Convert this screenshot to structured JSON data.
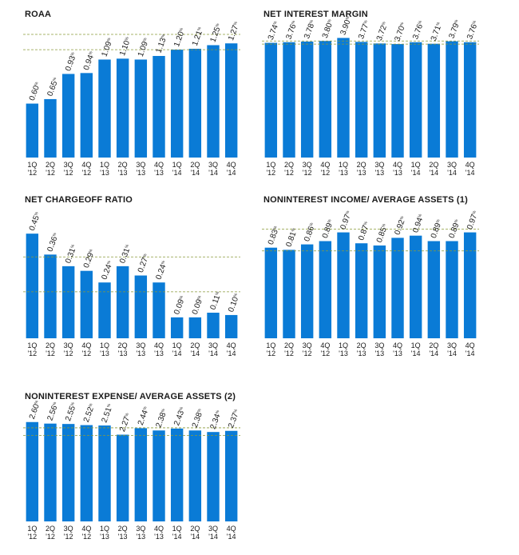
{
  "chart_data": [
    {
      "type": "bar",
      "title": "ROAA",
      "categories": [
        [
          "1Q",
          "'12"
        ],
        [
          "2Q",
          "'12"
        ],
        [
          "3Q",
          "'12"
        ],
        [
          "4Q",
          "'12"
        ],
        [
          "1Q",
          "'13"
        ],
        [
          "2Q",
          "'13"
        ],
        [
          "3Q",
          "'13"
        ],
        [
          "4Q",
          "'13"
        ],
        [
          "1Q",
          "'14"
        ],
        [
          "2Q",
          "'14"
        ],
        [
          "3Q",
          "'14"
        ],
        [
          "4Q",
          "'14"
        ]
      ],
      "values": [
        0.6,
        0.65,
        0.93,
        0.94,
        1.09,
        1.1,
        1.09,
        1.13,
        1.2,
        1.21,
        1.25,
        1.27
      ],
      "labels": [
        "0.60",
        "0.65",
        "0.93",
        "0.94",
        "1.09",
        "1.10",
        "1.09",
        "1.13",
        "1.20",
        "1.21",
        "1.25",
        "1.27"
      ],
      "unit": "%",
      "ylim": [
        0,
        1.45
      ],
      "reference_lines": [
        1.2,
        1.37
      ],
      "bar_color": "#0a7bd6",
      "reference_line_color": "#8a9a3a"
    },
    {
      "type": "bar",
      "title": "NET INTEREST MARGIN",
      "categories": [
        [
          "1Q",
          "'12"
        ],
        [
          "2Q",
          "'12"
        ],
        [
          "3Q",
          "'12"
        ],
        [
          "4Q",
          "'12"
        ],
        [
          "1Q",
          "'13"
        ],
        [
          "2Q",
          "'13"
        ],
        [
          "3Q",
          "'13"
        ],
        [
          "4Q",
          "'13"
        ],
        [
          "1Q",
          "'14"
        ],
        [
          "2Q",
          "'14"
        ],
        [
          "3Q",
          "'14"
        ],
        [
          "4Q",
          "'14"
        ]
      ],
      "values": [
        3.74,
        3.76,
        3.78,
        3.8,
        3.9,
        3.77,
        3.72,
        3.7,
        3.76,
        3.71,
        3.79,
        3.76
      ],
      "labels": [
        "3.74",
        "3.76",
        "3.78",
        "3.80",
        "3.90",
        "3.77",
        "3.72",
        "3.70",
        "3.76",
        "3.71",
        "3.79",
        "3.76"
      ],
      "unit": "%",
      "ylim": [
        0,
        4.25
      ],
      "reference_lines": [
        3.7,
        3.8
      ],
      "bar_color": "#0a7bd6",
      "reference_line_color": "#8a9a3a"
    },
    {
      "type": "bar",
      "title": "NET CHARGEOFF RATIO",
      "categories": [
        [
          "1Q",
          "'12"
        ],
        [
          "2Q",
          "'12"
        ],
        [
          "3Q",
          "'12"
        ],
        [
          "4Q",
          "'12"
        ],
        [
          "1Q",
          "'13"
        ],
        [
          "2Q",
          "'13"
        ],
        [
          "3Q",
          "'13"
        ],
        [
          "4Q",
          "'13"
        ],
        [
          "1Q",
          "'14"
        ],
        [
          "2Q",
          "'14"
        ],
        [
          "3Q",
          "'14"
        ],
        [
          "4Q",
          "'14"
        ]
      ],
      "values": [
        0.45,
        0.36,
        0.31,
        0.29,
        0.24,
        0.31,
        0.27,
        0.24,
        0.09,
        0.09,
        0.11,
        0.1
      ],
      "labels": [
        "0.45",
        "0.36",
        "0.31",
        "0.29",
        "0.24",
        "0.31",
        "0.27",
        "0.24",
        "0.09",
        "0.09",
        "0.11",
        "0.10"
      ],
      "unit": "%",
      "ylim": [
        0,
        0.54
      ],
      "reference_lines": [
        0.2,
        0.35
      ],
      "bar_color": "#0a7bd6",
      "reference_line_color": "#8a9a3a"
    },
    {
      "type": "bar",
      "title": "NONINTEREST INCOME/ AVERAGE ASSETS (1)",
      "categories": [
        [
          "1Q",
          "'12"
        ],
        [
          "2Q",
          "'12"
        ],
        [
          "3Q",
          "'12"
        ],
        [
          "4Q",
          "'12"
        ],
        [
          "1Q",
          "'13"
        ],
        [
          "2Q",
          "'13"
        ],
        [
          "3Q",
          "'13"
        ],
        [
          "4Q",
          "'13"
        ],
        [
          "1Q",
          "'14"
        ],
        [
          "2Q",
          "'14"
        ],
        [
          "3Q",
          "'14"
        ],
        [
          "4Q",
          "'14"
        ]
      ],
      "values": [
        0.83,
        0.81,
        0.86,
        0.89,
        0.97,
        0.87,
        0.85,
        0.92,
        0.94,
        0.89,
        0.89,
        0.97
      ],
      "labels": [
        "0.83",
        "0.81",
        "0.86",
        "0.89",
        "0.97",
        "0.87",
        "0.85",
        "0.92",
        "0.94",
        "0.89",
        "0.89",
        "0.97"
      ],
      "unit": "%",
      "ylim": [
        0,
        1.15
      ],
      "reference_lines": [
        0.8,
        1.0
      ],
      "bar_color": "#0a7bd6",
      "reference_line_color": "#8a9a3a"
    },
    {
      "type": "bar",
      "title": "NONINTEREST EXPENSE/ AVERAGE ASSETS (2)",
      "categories": [
        [
          "1Q",
          "'12"
        ],
        [
          "2Q",
          "'12"
        ],
        [
          "3Q",
          "'12"
        ],
        [
          "4Q",
          "'12"
        ],
        [
          "1Q",
          "'13"
        ],
        [
          "2Q",
          "'13"
        ],
        [
          "3Q",
          "'13"
        ],
        [
          "4Q",
          "'13"
        ],
        [
          "1Q",
          "'14"
        ],
        [
          "2Q",
          "'14"
        ],
        [
          "3Q",
          "'14"
        ],
        [
          "4Q",
          "'14"
        ]
      ],
      "values": [
        2.6,
        2.56,
        2.55,
        2.52,
        2.51,
        2.27,
        2.44,
        2.38,
        2.43,
        2.38,
        2.34,
        2.37
      ],
      "labels": [
        "2.60",
        "2.56",
        "2.55",
        "2.52",
        "2.51",
        "2.27",
        "2.44",
        "2.38",
        "2.43",
        "2.38",
        "2.34",
        "2.37"
      ],
      "unit": "%",
      "ylim": [
        0,
        2.93
      ],
      "reference_lines": [
        2.25,
        2.45
      ],
      "bar_color": "#0a7bd6",
      "reference_line_color": "#8a9a3a"
    }
  ]
}
